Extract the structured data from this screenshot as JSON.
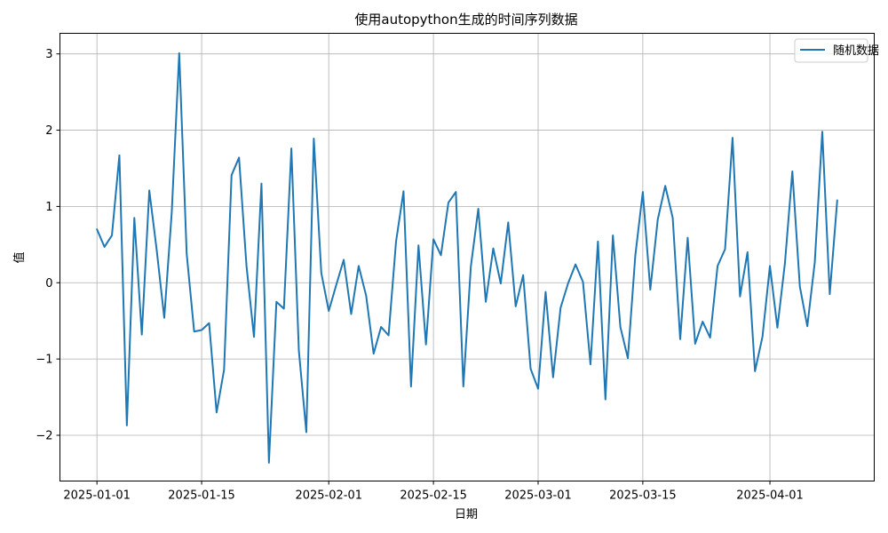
{
  "chart_data": {
    "type": "line",
    "title": "使用autopython生成的时间序列数据",
    "xlabel": "日期",
    "ylabel": "值",
    "start_date": "2025-01-01",
    "end_date": "2025-04-10",
    "x_ticks": [
      "2025-01-01",
      "2025-01-15",
      "2025-02-01",
      "2025-02-15",
      "2025-03-01",
      "2025-03-15",
      "2025-04-01"
    ],
    "y_ticks": [
      -2,
      -1,
      0,
      1,
      2,
      3
    ],
    "ylim": [
      -2.6,
      3.27
    ],
    "grid": true,
    "legend_position": "top-right",
    "colors": {
      "series": "#1f77b4",
      "grid": "#b0b0b0"
    },
    "series": [
      {
        "name": "随机数据",
        "values": [
          0.7,
          0.47,
          0.62,
          1.67,
          -1.87,
          0.85,
          -0.68,
          1.21,
          0.42,
          -0.46,
          0.92,
          3.01,
          0.38,
          -0.64,
          -0.62,
          -0.53,
          -1.7,
          -1.14,
          1.41,
          1.64,
          0.22,
          -0.71,
          1.3,
          -2.36,
          -0.25,
          -0.34,
          1.76,
          -0.89,
          -1.96,
          1.89,
          0.13,
          -0.37,
          -0.03,
          0.3,
          -0.41,
          0.22,
          -0.17,
          -0.93,
          -0.58,
          -0.69,
          0.54,
          1.2,
          -1.36,
          0.49,
          -0.81,
          0.57,
          0.36,
          1.05,
          1.19,
          -1.36,
          0.21,
          0.97,
          -0.25,
          0.45,
          -0.01,
          0.79,
          -0.31,
          0.1,
          -1.13,
          -1.39,
          -0.12,
          -1.24,
          -0.33,
          -0.01,
          0.24,
          0.01,
          -1.07,
          0.54,
          -1.53,
          0.62,
          -0.58,
          -0.99,
          0.36,
          1.19,
          -0.09,
          0.83,
          1.27,
          0.85,
          -0.74,
          0.59,
          -0.8,
          -0.51,
          -0.72,
          0.22,
          0.44,
          1.9,
          -0.18,
          0.4,
          -1.16,
          -0.71,
          0.22,
          -0.59,
          0.25,
          1.46,
          -0.05,
          -0.57,
          0.27,
          1.98,
          -0.15,
          1.08
        ]
      }
    ]
  }
}
